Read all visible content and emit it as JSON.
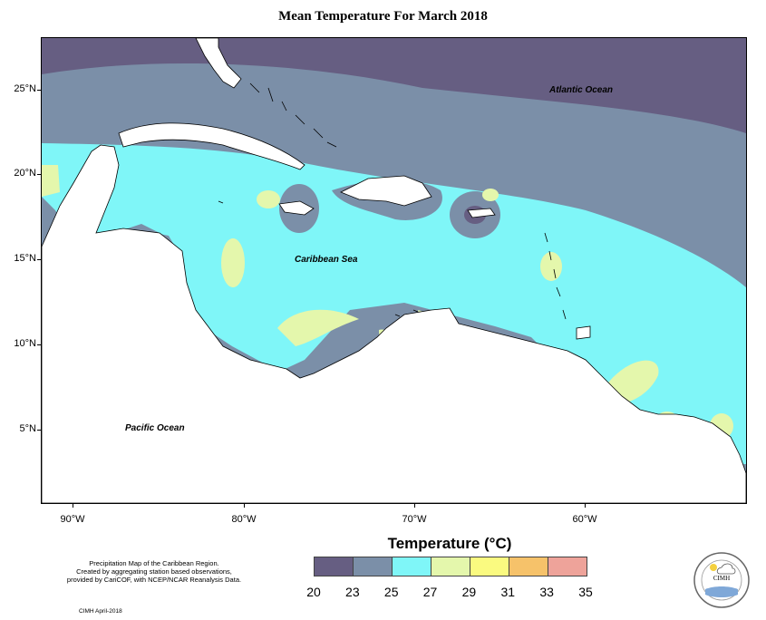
{
  "title": "Mean Temperature For March 2018",
  "map": {
    "region": "Caribbean",
    "lat_labels": [
      "25°N",
      "20°N",
      "15°N",
      "10°N",
      "5°N"
    ],
    "lon_labels": [
      "90°W",
      "80°W",
      "70°W",
      "60°W"
    ],
    "place_labels": {
      "atlantic": "Atlantic Ocean",
      "caribbean": "Caribbean Sea",
      "pacific": "Pacific Ocean"
    }
  },
  "legend": {
    "title": "Temperature (°C)",
    "labels": [
      "20",
      "23",
      "25",
      "27",
      "29",
      "31",
      "33",
      "35"
    ],
    "colors": [
      "#665e82",
      "#7b8fa8",
      "#7ff6f8",
      "#e4f7ac",
      "#fafa80",
      "#f6c26a",
      "#eea39a"
    ]
  },
  "credits": {
    "line1": "Precipitation Map of the Caribbean Region.",
    "line2": "Created by aggregating station based observations,",
    "line3": "provided by CariCOF, with NCEP/NCAR Reanalysis Data.",
    "date": "CIMH April-2018"
  },
  "logo": {
    "text": "CIMH"
  }
}
